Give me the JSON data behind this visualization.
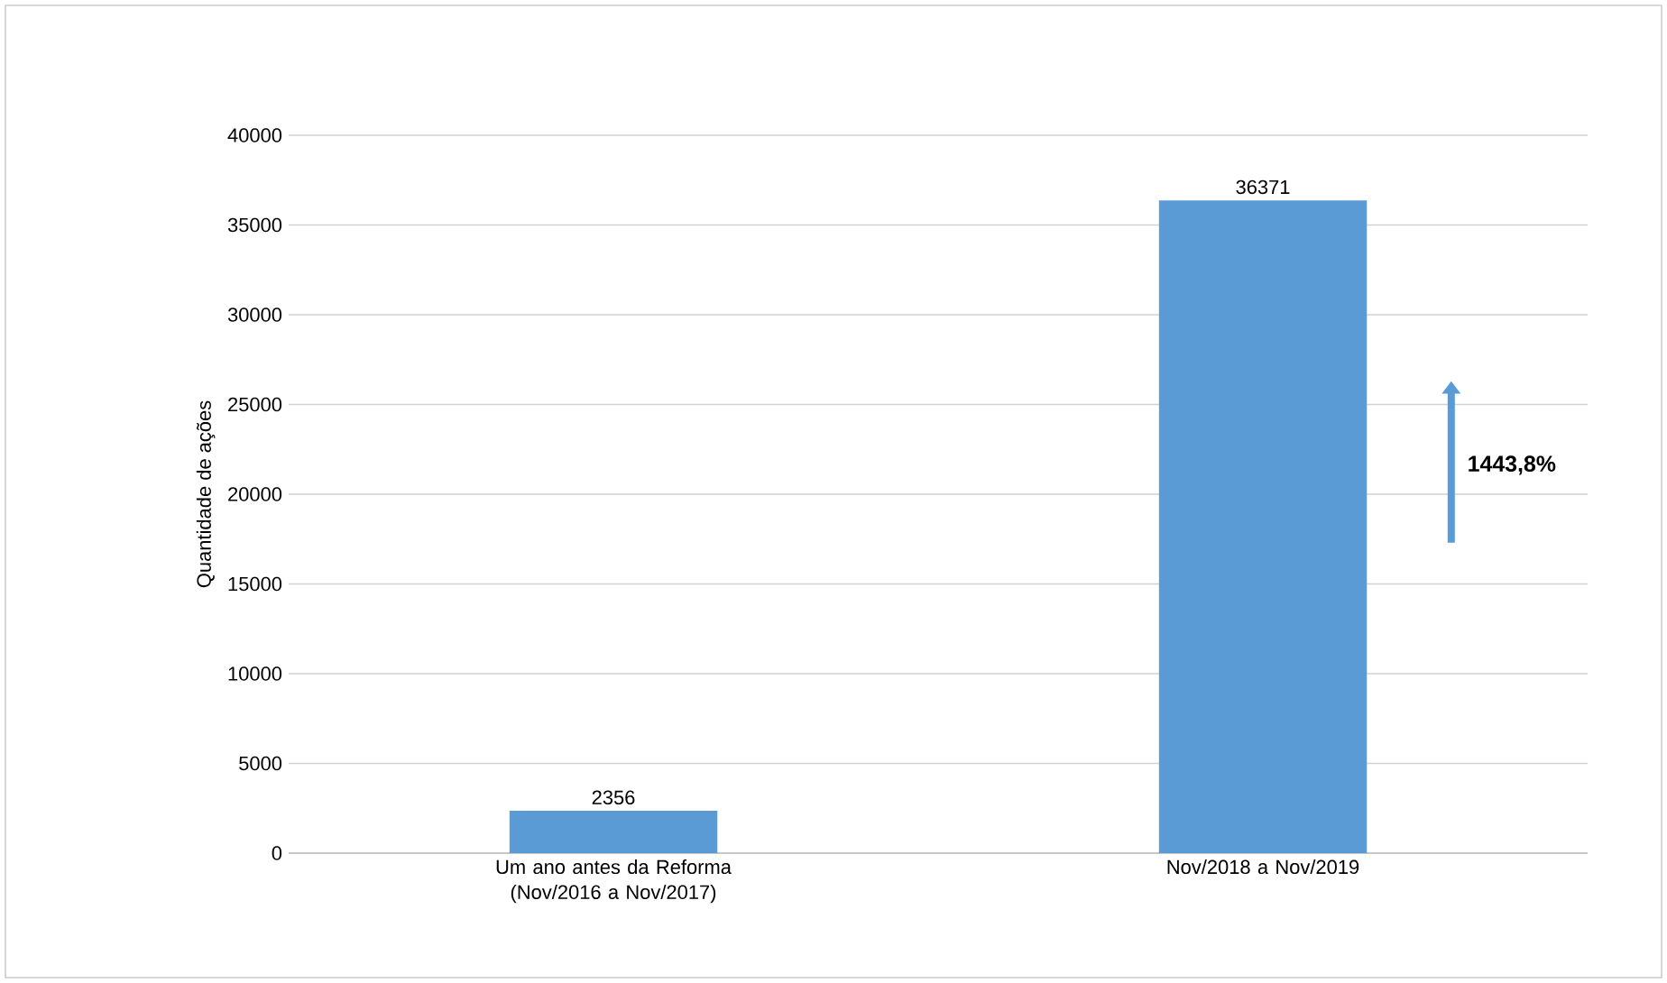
{
  "chart_data": {
    "type": "bar",
    "ylabel": "Quantidade de ações",
    "categories": [
      "Um ano antes da Reforma (Nov/2016 a Nov/2017)",
      "Nov/2018 a Nov/2019"
    ],
    "values": [
      2356,
      36371
    ],
    "color": "#5b9bd5",
    "data_labels": true,
    "ylim": [
      0,
      40000
    ],
    "yticks": [
      0,
      5000,
      10000,
      15000,
      20000,
      25000,
      30000,
      35000,
      40000
    ],
    "grid": "y",
    "annotations": [
      "1443,8%"
    ]
  }
}
